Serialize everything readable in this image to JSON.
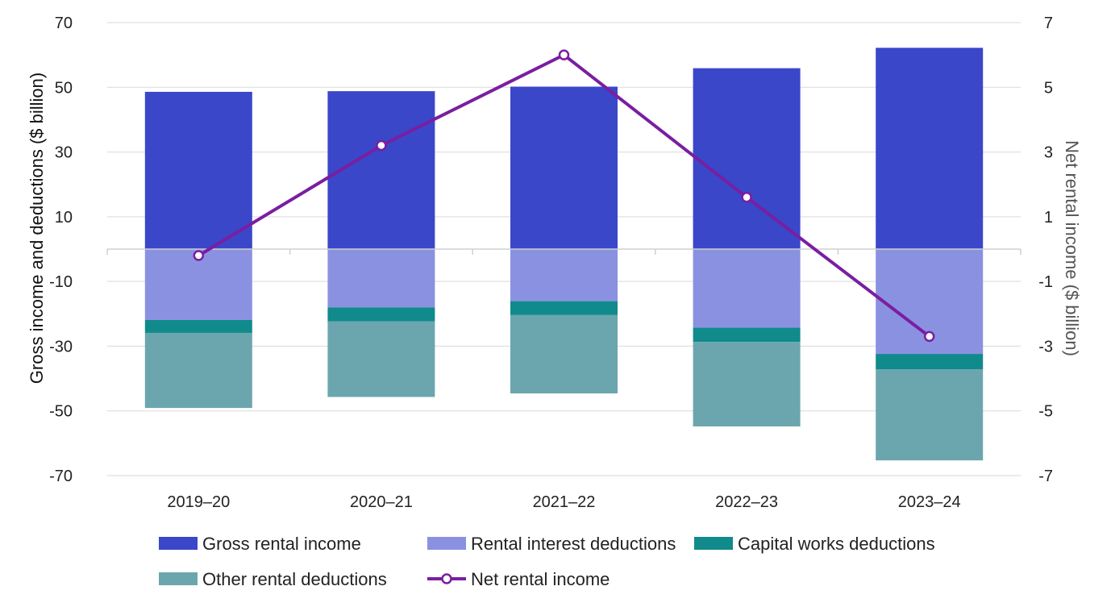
{
  "chart_data": {
    "type": "bar",
    "subtype": "stacked-bar-with-line",
    "categories": [
      "2019–20",
      "2020–21",
      "2021–22",
      "2022–23",
      "2023–24"
    ],
    "ylabel": "Gross income and deductions ($ billion)",
    "y2label": "Net rental income ($ billion)",
    "ylim": [
      -70,
      70
    ],
    "y2lim": [
      -7,
      7
    ],
    "yticks": [
      "70",
      "50",
      "30",
      "10",
      "-10",
      "-30",
      "-50",
      "-70"
    ],
    "y2ticks": [
      "7",
      "5",
      "3",
      "1",
      "-1",
      "-3",
      "-5",
      "-7"
    ],
    "grid": true,
    "legend_position": "bottom",
    "series": [
      {
        "name": "Gross rental income",
        "axis": "left",
        "kind": "bar",
        "color": "#3a47c9",
        "values": [
          48.6,
          48.8,
          50.2,
          55.9,
          62.2
        ]
      },
      {
        "name": "Rental interest deductions",
        "axis": "left",
        "kind": "bar",
        "color": "#8a91e0",
        "values": [
          -21.9,
          -18.0,
          -16.1,
          -24.3,
          -32.4
        ]
      },
      {
        "name": "Capital works deductions",
        "axis": "left",
        "kind": "bar",
        "color": "#118a8c",
        "values": [
          -4.0,
          -4.3,
          -4.3,
          -4.4,
          -4.8
        ]
      },
      {
        "name": "Other rental deductions",
        "axis": "left",
        "kind": "bar",
        "color": "#6ba6ae",
        "values": [
          -23.2,
          -23.4,
          -24.2,
          -26.1,
          -28.1
        ]
      },
      {
        "name": "Net rental income",
        "axis": "right",
        "kind": "line",
        "color": "#7a1ea1",
        "values": [
          -0.2,
          3.2,
          6.0,
          1.6,
          -2.7
        ]
      }
    ]
  }
}
